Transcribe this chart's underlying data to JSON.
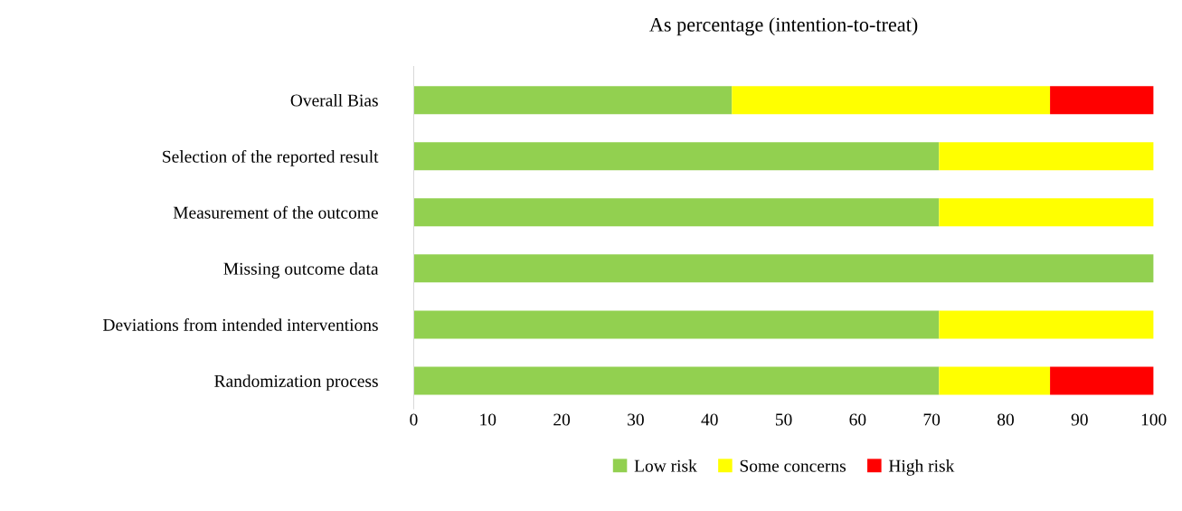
{
  "chart_data": {
    "type": "bar",
    "orientation": "horizontal",
    "stacked": true,
    "title": "As percentage (intention-to-treat)",
    "categories": [
      "Overall Bias",
      "Selection of the reported result",
      "Measurement of the outcome",
      "Missing outcome data",
      "Deviations from intended interventions",
      "Randomization process"
    ],
    "series": [
      {
        "name": "Low risk",
        "color": "#92d050",
        "values": [
          43,
          71,
          71,
          100,
          71,
          71
        ]
      },
      {
        "name": "Some concerns",
        "color": "#ffff00",
        "values": [
          43,
          29,
          29,
          null,
          29,
          15
        ]
      },
      {
        "name": "High risk",
        "color": "#ff0000",
        "values": [
          14,
          null,
          null,
          null,
          null,
          14
        ]
      }
    ],
    "xlim": [
      0,
      100
    ],
    "xticks": [
      0,
      10,
      20,
      30,
      40,
      50,
      60,
      70,
      80,
      90,
      100
    ],
    "grid": false,
    "legend": "bottom"
  }
}
